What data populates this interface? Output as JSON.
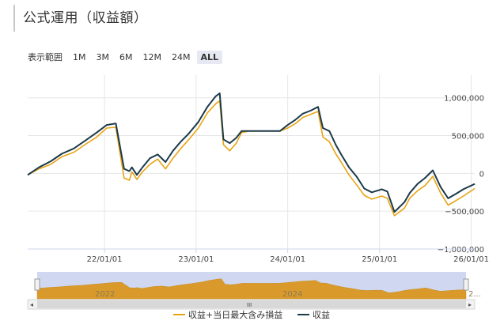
{
  "header": {
    "title": "公式運用（収益額）"
  },
  "range_selector": {
    "label": "表示範囲",
    "buttons": [
      "1M",
      "3M",
      "6M",
      "12M",
      "24M",
      "ALL"
    ],
    "active": "ALL"
  },
  "navigator": {
    "year_labels": [
      "2022",
      "2024",
      "2..."
    ],
    "handle_glyph": "III"
  },
  "colors": {
    "series1": "#e8a415",
    "series2": "#1c3a4a",
    "grid": "#e6e6e6",
    "navigator_bg": "#cfd8f0",
    "navigator_fill": "#d99a2b"
  },
  "chart_data": {
    "type": "line",
    "xlabel": "",
    "ylabel": "",
    "x_tick_labels": [
      "22/01/01",
      "23/01/01",
      "24/01/01",
      "25/01/01",
      "26/01/01"
    ],
    "y_tick_labels": [
      "1,000,000",
      "500,000",
      "0",
      "−500,000",
      "−1,000,000"
    ],
    "y_ticks": [
      1000000,
      500000,
      0,
      -500000,
      -1000000
    ],
    "ylim": [
      -1000000,
      1300000
    ],
    "xlim": [
      "2021-03-01",
      "2026-01-15"
    ],
    "legend": {
      "position": "bottom-center",
      "entries": [
        "収益+当日最大含み損益",
        "収益"
      ]
    },
    "series": [
      {
        "name": "収益",
        "x": [
          "2021-03-01",
          "2021-04-15",
          "2021-06-01",
          "2021-07-15",
          "2021-09-01",
          "2021-10-15",
          "2021-12-01",
          "2022-01-10",
          "2022-02-15",
          "2022-03-20",
          "2022-04-10",
          "2022-04-20",
          "2022-05-10",
          "2022-06-01",
          "2022-07-01",
          "2022-08-01",
          "2022-09-01",
          "2022-10-01",
          "2022-11-01",
          "2022-12-01",
          "2023-01-10",
          "2023-02-15",
          "2023-03-20",
          "2023-04-05",
          "2023-04-20",
          "2023-05-15",
          "2023-06-10",
          "2023-07-01",
          "2023-08-01",
          "2023-09-01",
          "2023-10-01",
          "2023-11-01",
          "2023-12-01",
          "2024-01-01",
          "2024-02-01",
          "2024-03-01",
          "2024-04-01",
          "2024-05-01",
          "2024-05-20",
          "2024-06-15",
          "2024-07-10",
          "2024-08-01",
          "2024-09-01",
          "2024-10-01",
          "2024-11-01",
          "2024-12-01",
          "2025-01-10",
          "2025-02-01",
          "2025-03-01",
          "2025-04-10",
          "2025-05-01",
          "2025-06-01",
          "2025-07-01",
          "2025-08-01",
          "2025-09-01",
          "2025-10-01",
          "2025-11-01",
          "2025-12-01",
          "2026-01-15"
        ],
        "values": [
          -20000,
          80000,
          160000,
          260000,
          330000,
          430000,
          540000,
          640000,
          660000,
          60000,
          30000,
          80000,
          -20000,
          80000,
          200000,
          250000,
          150000,
          300000,
          420000,
          520000,
          680000,
          880000,
          1020000,
          1060000,
          450000,
          400000,
          470000,
          560000,
          560000,
          560000,
          560000,
          560000,
          560000,
          640000,
          710000,
          790000,
          830000,
          880000,
          600000,
          560000,
          380000,
          250000,
          80000,
          -40000,
          -200000,
          -250000,
          -210000,
          -240000,
          -510000,
          -380000,
          -260000,
          -140000,
          -60000,
          40000,
          -180000,
          -330000,
          -270000,
          -210000,
          -140000
        ]
      },
      {
        "name": "収益+当日最大含み損益",
        "x": [
          "2021-03-01",
          "2021-04-15",
          "2021-06-01",
          "2021-07-15",
          "2021-09-01",
          "2021-10-15",
          "2021-12-01",
          "2022-01-10",
          "2022-02-15",
          "2022-03-20",
          "2022-04-10",
          "2022-04-20",
          "2022-05-10",
          "2022-06-01",
          "2022-07-01",
          "2022-08-01",
          "2022-09-01",
          "2022-10-01",
          "2022-11-01",
          "2022-12-01",
          "2023-01-10",
          "2023-02-15",
          "2023-03-20",
          "2023-04-05",
          "2023-04-20",
          "2023-05-15",
          "2023-06-10",
          "2023-07-01",
          "2023-08-01",
          "2023-09-01",
          "2023-10-01",
          "2023-11-01",
          "2023-12-01",
          "2024-01-01",
          "2024-02-01",
          "2024-03-01",
          "2024-04-01",
          "2024-05-01",
          "2024-05-20",
          "2024-06-15",
          "2024-07-10",
          "2024-08-01",
          "2024-09-01",
          "2024-10-01",
          "2024-11-01",
          "2024-12-01",
          "2025-01-10",
          "2025-02-01",
          "2025-03-01",
          "2025-04-10",
          "2025-05-01",
          "2025-06-01",
          "2025-07-01",
          "2025-08-01",
          "2025-09-01",
          "2025-10-01",
          "2025-11-01",
          "2025-12-01",
          "2026-01-15"
        ],
        "values": [
          -20000,
          60000,
          120000,
          220000,
          280000,
          380000,
          480000,
          600000,
          610000,
          -60000,
          -90000,
          20000,
          -80000,
          20000,
          120000,
          190000,
          60000,
          200000,
          330000,
          440000,
          600000,
          800000,
          920000,
          960000,
          380000,
          300000,
          400000,
          540000,
          560000,
          560000,
          560000,
          560000,
          560000,
          600000,
          660000,
          740000,
          780000,
          820000,
          480000,
          420000,
          260000,
          150000,
          -20000,
          -150000,
          -290000,
          -340000,
          -300000,
          -330000,
          -560000,
          -460000,
          -330000,
          -230000,
          -160000,
          -40000,
          -260000,
          -420000,
          -360000,
          -300000,
          -200000
        ]
      }
    ]
  }
}
